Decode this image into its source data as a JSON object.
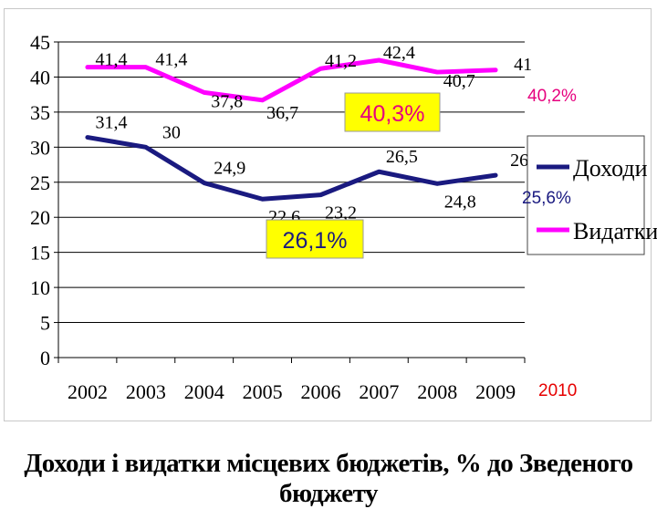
{
  "chart_data": {
    "type": "line",
    "title": "Доходи і видатки місцевих бюджетів, % до Зведеного бюджету",
    "categories": [
      "2002",
      "2003",
      "2004",
      "2005",
      "2006",
      "2007",
      "2008",
      "2009"
    ],
    "ylim": [
      0,
      45
    ],
    "y_ticks": [
      "0",
      "5",
      "10",
      "15",
      "20",
      "25",
      "30",
      "35",
      "40",
      "45"
    ],
    "grid": "horizontal",
    "legend_position": "right",
    "series": [
      {
        "name": "Доходи",
        "color": "#1a1a80",
        "values": [
          31.4,
          30,
          24.9,
          22.6,
          23.2,
          26.5,
          24.8,
          26
        ],
        "labels": [
          "31,4",
          "30",
          "24,9",
          "22,6",
          "23,2",
          "26,5",
          "24,8",
          "26"
        ]
      },
      {
        "name": "Видатки",
        "color": "#ff00ff",
        "values": [
          41.4,
          41.4,
          37.8,
          36.7,
          41.2,
          42.4,
          40.7,
          41
        ],
        "labels": [
          "41,4",
          "41,4",
          "37,8",
          "36,7",
          "41,2",
          "42,4",
          "40,7",
          "41"
        ]
      }
    ],
    "annotations": {
      "highlight_expenditure": "40,3%",
      "highlight_income": "26,1%",
      "side_expenditure": "40,2%",
      "side_income": "25,6%",
      "side_year": "2010"
    },
    "highlight_color": "#ffff00",
    "side_expenditure_color": "#e6007e",
    "side_income_color": "#1a1a80",
    "side_year_color": "#e60000"
  }
}
